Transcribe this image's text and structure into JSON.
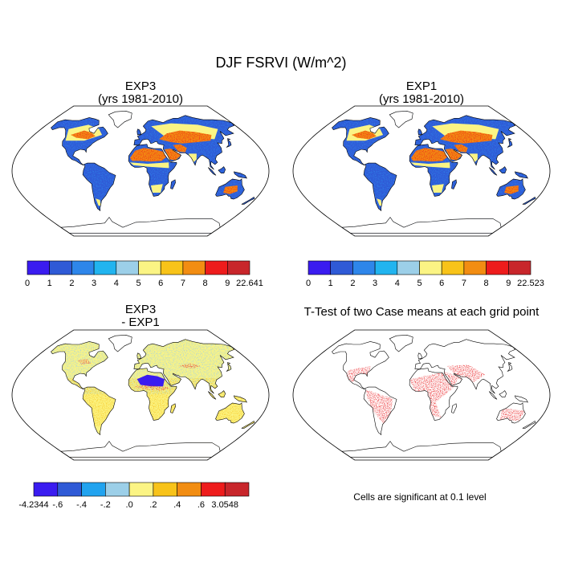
{
  "figure": {
    "title": "DJF FSRVI (W/m^2)",
    "significance_note": "Cells are significant at 0.1 level"
  },
  "chart_data": [
    {
      "type": "heatmap",
      "panel": "top-left",
      "title": "EXP3",
      "subtitle": "(yrs 1981-2010)",
      "colorbar": {
        "labels": [
          "0",
          "1",
          "2",
          "3",
          "4",
          "5",
          "6",
          "7",
          "8",
          "9",
          "22.641"
        ],
        "colors": [
          "#3a1cf0",
          "#2f5ad6",
          "#2e86ea",
          "#21b4ef",
          "#9ccfe8",
          "#fbf484",
          "#f8c319",
          "#f28d12",
          "#ee1c1c",
          "#c8262b"
        ]
      }
    },
    {
      "type": "heatmap",
      "panel": "top-right",
      "title": "EXP1",
      "subtitle": "(yrs 1981-2010)",
      "colorbar": {
        "labels": [
          "0",
          "1",
          "2",
          "3",
          "4",
          "5",
          "6",
          "7",
          "8",
          "9",
          "22.523"
        ],
        "colors": [
          "#3a1cf0",
          "#2f5ad6",
          "#2e86ea",
          "#21b4ef",
          "#9ccfe8",
          "#fbf484",
          "#f8c319",
          "#f28d12",
          "#ee1c1c",
          "#c8262b"
        ]
      }
    },
    {
      "type": "heatmap",
      "panel": "bottom-left",
      "title": "EXP3",
      "subtitle": "- EXP1",
      "colorbar": {
        "labels": [
          "-4.2344",
          "-.6",
          "-.4",
          "-.2",
          ".0",
          ".2",
          ".4",
          ".6",
          "3.0548"
        ],
        "colors": [
          "#3a1cf0",
          "#2f5ad6",
          "#21a3ef",
          "#9ccfe8",
          "#fbf484",
          "#f8c319",
          "#f28d12",
          "#ee1c1c",
          "#c8262b"
        ]
      }
    },
    {
      "type": "heatmap",
      "panel": "bottom-right",
      "title": "T-Test of two Case means at each grid point",
      "significance_color": "#e8000a"
    }
  ]
}
